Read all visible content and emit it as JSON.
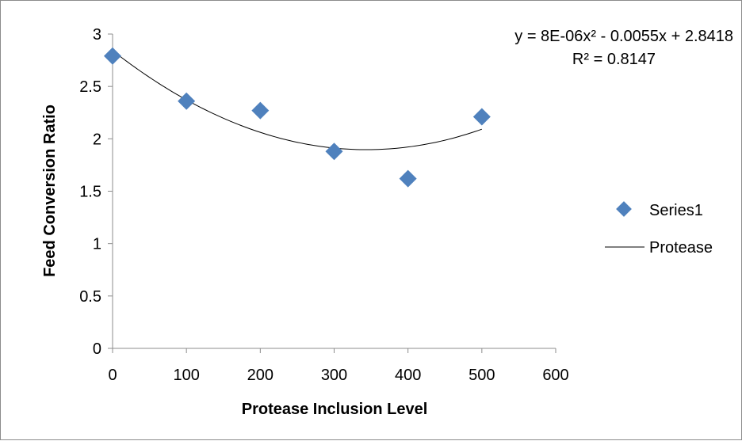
{
  "chart_data": {
    "type": "scatter",
    "xlabel": "Protease Inclusion Level",
    "ylabel": "Feed Conversion Ratio",
    "xlim": [
      0,
      600
    ],
    "ylim": [
      0,
      3
    ],
    "x_ticks": [
      0,
      100,
      200,
      300,
      400,
      500,
      600
    ],
    "y_ticks": [
      0,
      0.5,
      1,
      1.5,
      2,
      2.5,
      3
    ],
    "x_tick_labels": [
      "0",
      "100",
      "200",
      "300",
      "400",
      "500",
      "600"
    ],
    "y_tick_labels": [
      "0",
      "0.5",
      "1",
      "1.5",
      "2",
      "2.5",
      "3"
    ],
    "grid": false,
    "legend_position": "right",
    "series": [
      {
        "name": "Series1",
        "marker": "diamond",
        "color": "#4f81bd",
        "x": [
          0,
          100,
          200,
          300,
          400,
          500
        ],
        "y": [
          2.79,
          2.36,
          2.27,
          1.88,
          1.62,
          2.21
        ]
      }
    ],
    "trendline": {
      "name": "Protease",
      "type": "polynomial",
      "color": "#000000",
      "coefficients": [
        8e-06,
        -0.0055,
        2.8418
      ],
      "x_range": [
        0,
        500
      ],
      "equation_label": "y = 8E-06x² - 0.0055x + 2.8418",
      "r2_label": "R² = 0.8147"
    }
  }
}
